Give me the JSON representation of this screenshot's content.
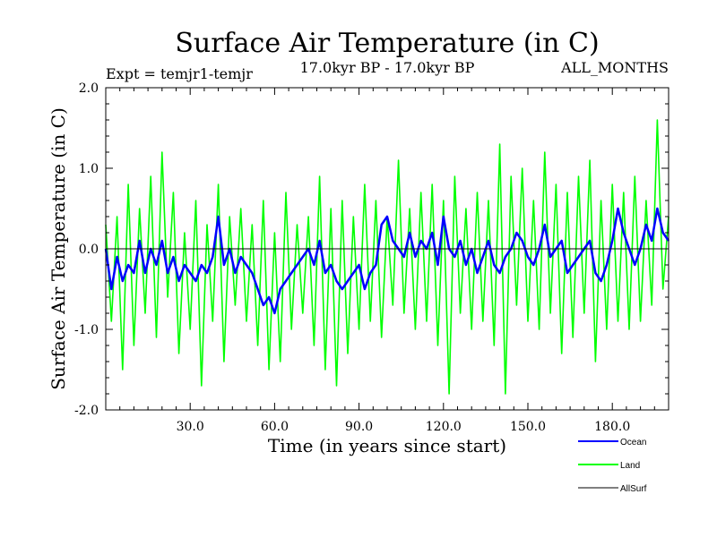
{
  "chart_data": {
    "type": "line",
    "title": "Surface Air Temperature (in C)",
    "subtitle": "17.0kyr BP - 17.0kyr BP",
    "left_label": "Expt = temjr1-temjr",
    "right_label": "ALL_MONTHS",
    "xlabel": "Time (in years since start)",
    "ylabel": "Surface Air Temperature (in C)",
    "xlim": [
      0,
      200
    ],
    "ylim": [
      -2.0,
      2.0
    ],
    "x_ticks": [
      30,
      60,
      90,
      120,
      150,
      180
    ],
    "x_tick_labels": [
      "30.0",
      "60.0",
      "90.0",
      "120.0",
      "150.0",
      "180.0"
    ],
    "y_ticks": [
      2.0,
      1.0,
      0.0,
      -1.0,
      -2.0
    ],
    "y_tick_labels": [
      "2.0",
      "1.0",
      "0.0",
      "-1.0",
      "-2.0"
    ],
    "reference_line": 0.0,
    "legend_position": "bottom-right",
    "series": [
      {
        "name": "Land",
        "color": "#00ff00",
        "x": [
          0,
          2,
          4,
          6,
          8,
          10,
          12,
          14,
          16,
          18,
          20,
          22,
          24,
          26,
          28,
          30,
          32,
          34,
          36,
          38,
          40,
          42,
          44,
          46,
          48,
          50,
          52,
          54,
          56,
          58,
          60,
          62,
          64,
          66,
          68,
          70,
          72,
          74,
          76,
          78,
          80,
          82,
          84,
          86,
          88,
          90,
          92,
          94,
          96,
          98,
          100,
          102,
          104,
          106,
          108,
          110,
          112,
          114,
          116,
          118,
          120,
          122,
          124,
          126,
          128,
          130,
          132,
          134,
          136,
          138,
          140,
          142,
          144,
          146,
          148,
          150,
          152,
          154,
          156,
          158,
          160,
          162,
          164,
          166,
          168,
          170,
          172,
          174,
          176,
          178,
          180,
          182,
          184,
          186,
          188,
          190,
          192,
          194,
          196,
          198,
          200
        ],
        "values": [
          0.3,
          -0.9,
          0.4,
          -1.5,
          0.8,
          -1.2,
          0.5,
          -0.8,
          0.9,
          -1.1,
          1.2,
          -0.6,
          0.7,
          -1.3,
          0.2,
          -1.0,
          0.6,
          -1.7,
          0.3,
          -0.9,
          0.8,
          -1.4,
          0.4,
          -0.7,
          0.5,
          -0.9,
          0.3,
          -1.2,
          0.6,
          -1.5,
          0.2,
          -1.4,
          0.7,
          -1.0,
          0.3,
          -0.8,
          0.4,
          -1.2,
          0.9,
          -1.5,
          0.5,
          -1.7,
          0.6,
          -1.3,
          0.4,
          -1.0,
          0.8,
          -0.9,
          0.6,
          -1.1,
          0.4,
          -0.7,
          1.1,
          -0.8,
          0.5,
          -1.0,
          0.7,
          -0.9,
          0.8,
          -1.2,
          0.6,
          -1.8,
          0.9,
          -0.8,
          0.5,
          -1.0,
          0.7,
          -0.9,
          0.6,
          -1.2,
          1.3,
          -1.8,
          0.9,
          -0.7,
          1.0,
          -0.9,
          0.6,
          -1.0,
          1.2,
          -0.8,
          0.8,
          -1.3,
          0.7,
          -1.1,
          0.9,
          -0.8,
          1.1,
          -1.4,
          0.6,
          -1.0,
          0.8,
          -0.9,
          0.7,
          -1.0,
          0.9,
          -0.9,
          0.6,
          -0.7,
          1.6,
          -0.5,
          0.4
        ]
      },
      {
        "name": "Ocean",
        "color": "#0000ff",
        "x": [
          0,
          2,
          4,
          6,
          8,
          10,
          12,
          14,
          16,
          18,
          20,
          22,
          24,
          26,
          28,
          30,
          32,
          34,
          36,
          38,
          40,
          42,
          44,
          46,
          48,
          50,
          52,
          54,
          56,
          58,
          60,
          62,
          64,
          66,
          68,
          70,
          72,
          74,
          76,
          78,
          80,
          82,
          84,
          86,
          88,
          90,
          92,
          94,
          96,
          98,
          100,
          102,
          104,
          106,
          108,
          110,
          112,
          114,
          116,
          118,
          120,
          122,
          124,
          126,
          128,
          130,
          132,
          134,
          136,
          138,
          140,
          142,
          144,
          146,
          148,
          150,
          152,
          154,
          156,
          158,
          160,
          162,
          164,
          166,
          168,
          170,
          172,
          174,
          176,
          178,
          180,
          182,
          184,
          186,
          188,
          190,
          192,
          194,
          196,
          198,
          200
        ],
        "values": [
          0.0,
          -0.5,
          -0.1,
          -0.4,
          -0.2,
          -0.3,
          0.1,
          -0.3,
          0.0,
          -0.2,
          0.1,
          -0.3,
          -0.1,
          -0.4,
          -0.2,
          -0.3,
          -0.4,
          -0.2,
          -0.3,
          -0.1,
          0.4,
          -0.2,
          0.0,
          -0.3,
          -0.1,
          -0.2,
          -0.3,
          -0.5,
          -0.7,
          -0.6,
          -0.8,
          -0.5,
          -0.4,
          -0.3,
          -0.2,
          -0.1,
          0.0,
          -0.2,
          0.1,
          -0.3,
          -0.2,
          -0.4,
          -0.5,
          -0.4,
          -0.3,
          -0.2,
          -0.5,
          -0.3,
          -0.2,
          0.3,
          0.4,
          0.1,
          0.0,
          -0.1,
          0.2,
          -0.1,
          0.1,
          0.0,
          0.2,
          -0.2,
          0.4,
          0.0,
          -0.1,
          0.1,
          -0.2,
          0.0,
          -0.3,
          -0.1,
          0.1,
          -0.2,
          -0.3,
          -0.1,
          0.0,
          0.2,
          0.1,
          -0.1,
          -0.2,
          0.0,
          0.3,
          -0.1,
          0.0,
          0.1,
          -0.3,
          -0.2,
          -0.1,
          0.0,
          0.1,
          -0.3,
          -0.4,
          -0.2,
          0.1,
          0.5,
          0.2,
          0.0,
          -0.2,
          0.0,
          0.3,
          0.1,
          0.5,
          0.2,
          0.1
        ]
      },
      {
        "name": "AllSurf",
        "color": "#000000",
        "x": [
          0,
          200
        ],
        "values": [
          0.0,
          0.0
        ]
      }
    ],
    "legend": [
      {
        "name": "Ocean",
        "color": "#0000ff"
      },
      {
        "name": "Land",
        "color": "#00ff00"
      },
      {
        "name": "AllSurf",
        "color": "#000000"
      }
    ]
  }
}
